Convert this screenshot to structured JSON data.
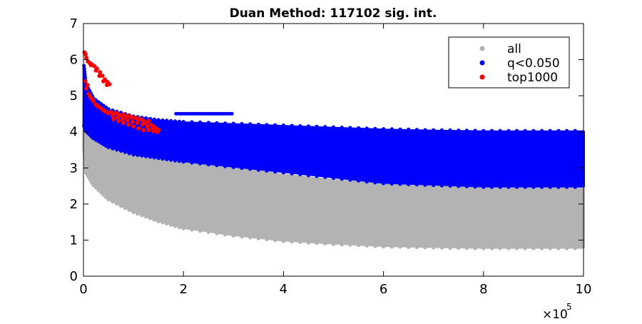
{
  "chart_data": {
    "type": "scatter",
    "title": "Duan Method: 117102 sig. int.",
    "xlabel": "",
    "ylabel": "",
    "xlim": [
      0,
      1000000
    ],
    "ylim": [
      0,
      7
    ],
    "x_ticks": [
      0,
      200000,
      400000,
      600000,
      800000,
      1000000
    ],
    "x_tick_labels": [
      "0",
      "2",
      "4",
      "6",
      "8",
      "10"
    ],
    "x_exponent_label": "×10",
    "x_exponent_power": "5",
    "y_ticks": [
      0,
      1,
      2,
      3,
      4,
      5,
      6,
      7
    ],
    "y_tick_labels": [
      "0",
      "1",
      "2",
      "3",
      "4",
      "5",
      "6",
      "7"
    ],
    "grid": false,
    "legend_position": "top-right",
    "series": [
      {
        "name": "all",
        "color": "#b3b3b3",
        "band": {
          "x": [
            1000,
            5000,
            20000,
            50000,
            100000,
            150000,
            200000,
            300000,
            400000,
            500000,
            600000,
            700000,
            800000,
            900000,
            1000000
          ],
          "upper": [
            4.6,
            4.4,
            4.1,
            3.75,
            3.5,
            3.35,
            3.2,
            3.0,
            2.8,
            2.65,
            2.55,
            2.52,
            2.5,
            2.5,
            2.5
          ],
          "lower": [
            3.6,
            2.9,
            2.55,
            2.15,
            1.8,
            1.55,
            1.35,
            1.15,
            1.0,
            0.92,
            0.85,
            0.82,
            0.8,
            0.8,
            0.8
          ]
        }
      },
      {
        "name": "q<0.050",
        "color": "#0000ff",
        "band": {
          "x": [
            1000,
            5000,
            20000,
            50000,
            100000,
            150000,
            200000,
            300000,
            400000,
            500000,
            600000,
            700000,
            800000,
            900000,
            1000000
          ],
          "upper": [
            5.8,
            5.3,
            4.9,
            4.6,
            4.4,
            4.3,
            4.25,
            4.2,
            4.15,
            4.1,
            4.05,
            4.02,
            4.0,
            4.0,
            4.0
          ],
          "lower": [
            4.2,
            4.05,
            3.85,
            3.6,
            3.4,
            3.3,
            3.2,
            3.05,
            2.9,
            2.75,
            2.6,
            2.55,
            2.5,
            2.5,
            2.5
          ]
        },
        "segment": {
          "x0": 185000,
          "x1": 300000,
          "y": 4.5
        }
      },
      {
        "name": "top1000",
        "color": "#ff0000",
        "points": [
          [
            2000,
            6.2
          ],
          [
            4000,
            6.15
          ],
          [
            6000,
            6.05
          ],
          [
            9000,
            5.95
          ],
          [
            13000,
            5.9
          ],
          [
            17000,
            5.87
          ],
          [
            22000,
            5.82
          ],
          [
            27000,
            5.75
          ],
          [
            33000,
            5.65
          ],
          [
            38000,
            5.55
          ],
          [
            43000,
            5.45
          ],
          [
            48000,
            5.38
          ],
          [
            52000,
            5.32
          ],
          [
            3000,
            5.4
          ],
          [
            6000,
            5.2
          ],
          [
            10000,
            5.05
          ],
          [
            15000,
            4.95
          ],
          [
            20000,
            4.85
          ],
          [
            25000,
            4.75
          ],
          [
            30000,
            4.7
          ],
          [
            35000,
            4.65
          ],
          [
            40000,
            4.6
          ],
          [
            45000,
            4.55
          ],
          [
            50000,
            4.52
          ],
          [
            55000,
            4.55
          ],
          [
            60000,
            4.5
          ],
          [
            65000,
            4.52
          ],
          [
            70000,
            4.48
          ],
          [
            75000,
            4.45
          ],
          [
            80000,
            4.48
          ],
          [
            85000,
            4.42
          ],
          [
            90000,
            4.45
          ],
          [
            95000,
            4.4
          ],
          [
            100000,
            4.4
          ],
          [
            105000,
            4.38
          ],
          [
            110000,
            4.35
          ],
          [
            115000,
            4.35
          ],
          [
            120000,
            4.3
          ],
          [
            125000,
            4.25
          ],
          [
            130000,
            4.3
          ],
          [
            135000,
            4.2
          ],
          [
            140000,
            4.15
          ],
          [
            145000,
            4.1
          ],
          [
            150000,
            4.05
          ],
          [
            60000,
            4.35
          ],
          [
            70000,
            4.3
          ],
          [
            80000,
            4.25
          ],
          [
            90000,
            4.2
          ],
          [
            100000,
            4.15
          ],
          [
            110000,
            4.1
          ],
          [
            120000,
            4.05
          ],
          [
            130000,
            4.05
          ],
          [
            140000,
            4.02
          ],
          [
            15000,
            5.85
          ],
          [
            25000,
            5.7
          ],
          [
            32000,
            5.55
          ],
          [
            40000,
            5.4
          ],
          [
            47000,
            5.3
          ],
          [
            8000,
            5.3
          ],
          [
            12000,
            5.0
          ],
          [
            18000,
            4.9
          ],
          [
            28000,
            4.72
          ],
          [
            42000,
            4.58
          ],
          [
            58000,
            4.45
          ],
          [
            68000,
            4.4
          ],
          [
            78000,
            4.35
          ],
          [
            88000,
            4.32
          ],
          [
            98000,
            4.28
          ],
          [
            108000,
            4.25
          ],
          [
            118000,
            4.2
          ],
          [
            128000,
            4.15
          ],
          [
            138000,
            4.1
          ],
          [
            148000,
            4.0
          ]
        ]
      }
    ]
  }
}
